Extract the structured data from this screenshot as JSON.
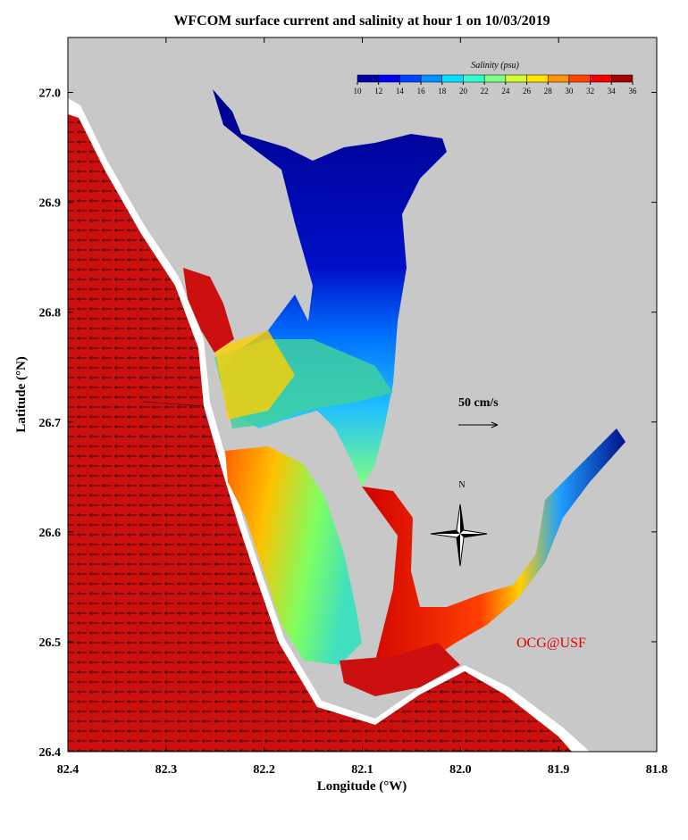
{
  "title": "WFCOM surface current and salinity at hour 1 on 10/03/2019",
  "x_axis": {
    "label": "Longitude (°W)",
    "lim": [
      82.4,
      81.8
    ],
    "ticks": [
      82.4,
      82.3,
      82.2,
      82.1,
      {
        "value": 82,
        "label": "82.0"
      },
      81.9,
      81.8
    ]
  },
  "y_axis": {
    "label": "Latitude (°N)",
    "lim": [
      26.4,
      27.05
    ],
    "ticks": [
      26.4,
      26.5,
      26.6,
      26.7,
      26.8,
      26.9,
      {
        "value": 27,
        "label": "27.0"
      }
    ]
  },
  "colorbar": {
    "title": "Salinity (psu)",
    "lim": [
      10,
      36
    ],
    "ticks": [
      10,
      12,
      14,
      16,
      18,
      20,
      22,
      24,
      26,
      28,
      30,
      32,
      34,
      36
    ]
  },
  "scale_label": "50 cm/s",
  "compass": "N",
  "credit": "OCG@USF"
}
